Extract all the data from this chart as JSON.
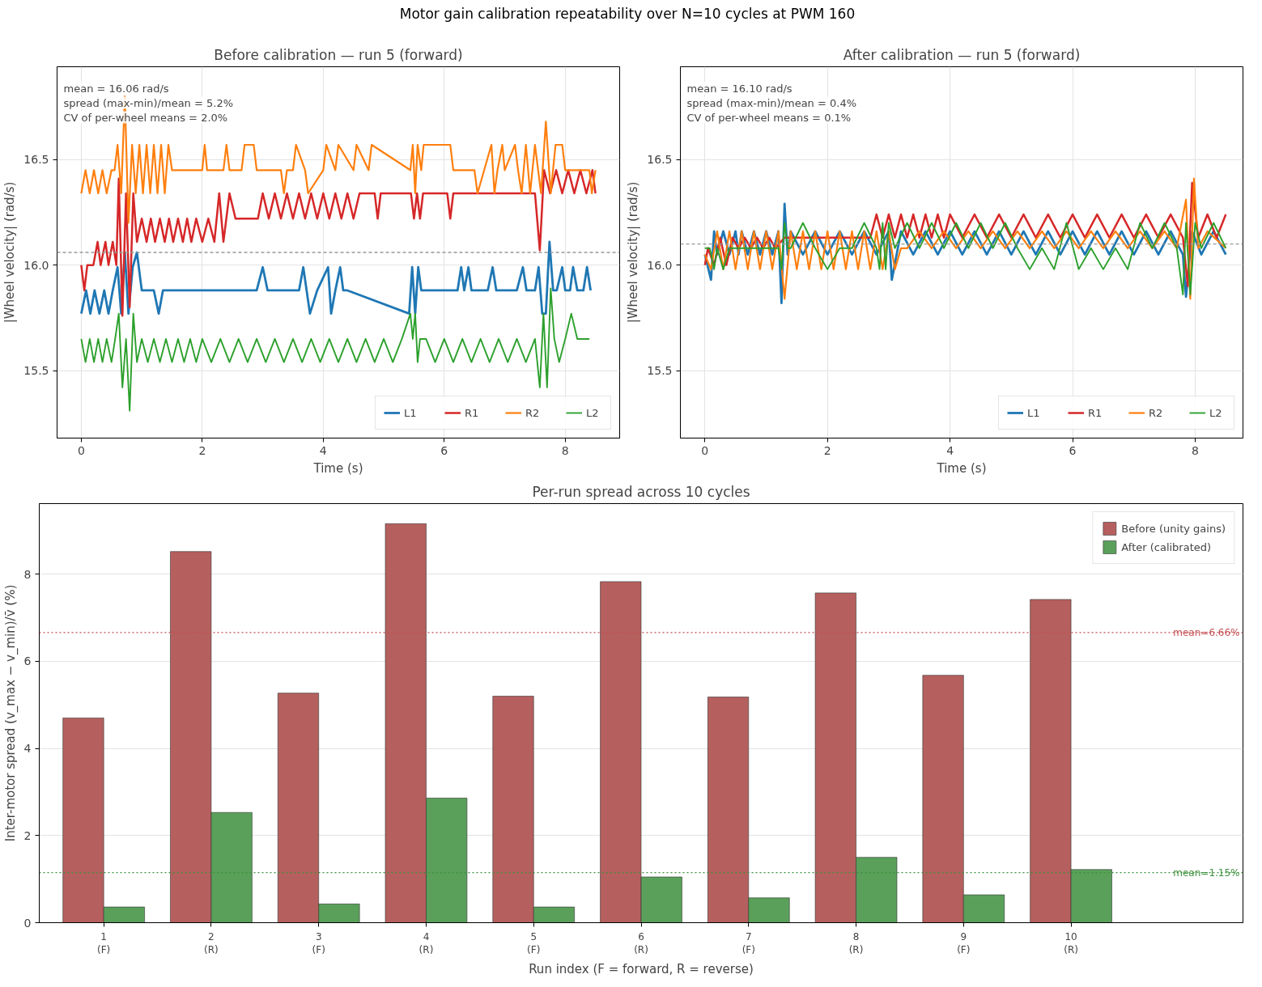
{
  "chart_data": [
    {
      "type": "other",
      "title": "Motor gain calibration repeatability over N=10 cycles at PWM 160"
    },
    {
      "type": "line",
      "title": "Before calibration — run 5 (forward)",
      "xlabel": "Time (s)",
      "ylabel": "|Wheel velocity| (rad/s)",
      "xlim": [
        -0.4,
        8.9
      ],
      "ylim": [
        15.18,
        16.94
      ],
      "xticks": [
        0,
        2,
        4,
        6,
        8
      ],
      "yticks": [
        15.5,
        {
          "value": 16,
          "label": "16.0"
        },
        16.5
      ],
      "grid": true,
      "legend": "bottom right",
      "line_style": "solid",
      "annotations": [
        "mean = 16.06 rad/s",
        "spread (max-min)/mean = 5.2%",
        "CV of per-wheel means = 2.0%"
      ],
      "ref_lines": [
        {
          "axis": "y",
          "value": 16.06,
          "label": null,
          "color": "#999999",
          "line_style": "dashed"
        }
      ],
      "series": [
        {
          "name": "L1",
          "color": "#1f77b4",
          "x": [
            0,
            0.08,
            0.15,
            0.22,
            0.3,
            0.38,
            0.45,
            0.52,
            0.6,
            0.66,
            0.72,
            0.78,
            0.85,
            0.92,
            1.0,
            1.1,
            1.2,
            1.28,
            1.35,
            2.9,
            3.0,
            3.08,
            3.6,
            3.67,
            3.78,
            3.9,
            4.08,
            4.13,
            4.2,
            4.28,
            4.33,
            4.4,
            5.42,
            5.47,
            5.52,
            5.57,
            5.62,
            6.22,
            6.28,
            6.33,
            6.4,
            6.45,
            6.72,
            6.8,
            6.86,
            7.2,
            7.3,
            7.36,
            7.5,
            7.56,
            7.62,
            7.68,
            7.74,
            7.8,
            7.86,
            7.95,
            8.0,
            8.08,
            8.13,
            8.2,
            8.3,
            8.36,
            8.42
          ],
          "values": [
            15.77,
            15.88,
            15.77,
            15.88,
            15.77,
            15.88,
            15.77,
            15.88,
            15.99,
            15.77,
            16.06,
            15.77,
            15.99,
            16.06,
            15.88,
            15.88,
            15.88,
            15.77,
            15.88,
            15.88,
            15.99,
            15.88,
            15.88,
            15.99,
            15.77,
            15.88,
            15.99,
            15.77,
            15.88,
            15.99,
            15.88,
            15.88,
            15.77,
            15.99,
            15.77,
            15.99,
            15.88,
            15.88,
            15.99,
            15.88,
            15.99,
            15.88,
            15.88,
            15.99,
            15.88,
            15.88,
            15.99,
            15.88,
            15.88,
            15.99,
            15.77,
            15.77,
            16.11,
            15.88,
            15.88,
            15.99,
            15.88,
            15.88,
            15.99,
            15.88,
            15.88,
            15.99,
            15.88
          ]
        },
        {
          "name": "R1",
          "color": "#d62728",
          "x": [
            0,
            0.05,
            0.1,
            0.2,
            0.27,
            0.32,
            0.4,
            0.45,
            0.52,
            0.58,
            0.62,
            0.68,
            0.74,
            0.8,
            0.86,
            0.92,
            1.0,
            1.08,
            1.15,
            1.22,
            1.3,
            1.38,
            1.45,
            1.52,
            1.6,
            1.68,
            1.75,
            1.82,
            1.9,
            2.0,
            2.1,
            2.2,
            2.28,
            2.35,
            2.45,
            2.55,
            2.92,
            3.0,
            3.1,
            3.2,
            3.3,
            3.4,
            3.5,
            3.6,
            3.7,
            3.8,
            3.9,
            4.0,
            4.1,
            4.2,
            4.3,
            4.4,
            4.5,
            4.6,
            4.85,
            4.9,
            4.95,
            5.45,
            5.5,
            5.55,
            5.6,
            5.65,
            6.05,
            6.1,
            6.15,
            7.2,
            7.5,
            7.58,
            7.65,
            7.75,
            7.85,
            7.95,
            8.05,
            8.15,
            8.25,
            8.35,
            8.45,
            8.5
          ],
          "values": [
            16.0,
            15.88,
            16.0,
            16.0,
            16.11,
            16.0,
            16.11,
            16.0,
            16.11,
            16.0,
            16.41,
            15.76,
            16.34,
            15.8,
            16.34,
            16.11,
            16.22,
            16.11,
            16.22,
            16.11,
            16.22,
            16.11,
            16.22,
            16.11,
            16.22,
            16.11,
            16.22,
            16.11,
            16.22,
            16.11,
            16.22,
            16.11,
            16.34,
            16.11,
            16.34,
            16.22,
            16.22,
            16.34,
            16.22,
            16.34,
            16.22,
            16.34,
            16.22,
            16.34,
            16.22,
            16.34,
            16.22,
            16.34,
            16.22,
            16.34,
            16.22,
            16.34,
            16.22,
            16.34,
            16.34,
            16.22,
            16.34,
            16.34,
            16.22,
            16.34,
            16.22,
            16.34,
            16.34,
            16.22,
            16.34,
            16.34,
            16.34,
            16.07,
            16.45,
            16.34,
            16.45,
            16.34,
            16.45,
            16.34,
            16.45,
            16.34,
            16.45,
            16.34
          ]
        },
        {
          "name": "R2",
          "color": "#ff7f0e",
          "x": [
            0,
            0.07,
            0.14,
            0.21,
            0.28,
            0.35,
            0.42,
            0.5,
            0.55,
            0.6,
            0.66,
            0.72,
            0.78,
            0.84,
            0.9,
            0.96,
            1.02,
            1.08,
            1.14,
            1.2,
            1.26,
            1.32,
            1.38,
            1.44,
            1.5,
            2.0,
            2.04,
            2.08,
            2.35,
            2.4,
            2.45,
            2.65,
            2.7,
            2.85,
            2.9,
            3.3,
            3.35,
            3.4,
            3.5,
            3.55,
            3.7,
            3.75,
            4.0,
            4.05,
            4.2,
            4.25,
            4.5,
            4.55,
            4.75,
            4.8,
            5.44,
            5.48,
            5.52,
            5.56,
            5.62,
            5.66,
            6.1,
            6.15,
            6.5,
            6.55,
            6.78,
            6.83,
            6.88,
            6.96,
            7.0,
            7.17,
            7.22,
            7.28,
            7.35,
            7.42,
            7.5,
            7.6,
            7.68,
            7.76,
            7.84,
            7.95,
            8.0,
            8.4,
            8.44,
            8.5
          ],
          "values": [
            16.34,
            16.45,
            16.34,
            16.45,
            16.34,
            16.45,
            16.34,
            16.45,
            16.45,
            16.57,
            16.34,
            16.8,
            16.2,
            16.57,
            16.34,
            16.57,
            16.34,
            16.57,
            16.34,
            16.57,
            16.34,
            16.57,
            16.34,
            16.57,
            16.45,
            16.45,
            16.57,
            16.45,
            16.45,
            16.57,
            16.45,
            16.45,
            16.57,
            16.57,
            16.45,
            16.45,
            16.34,
            16.45,
            16.45,
            16.57,
            16.45,
            16.34,
            16.45,
            16.57,
            16.45,
            16.57,
            16.45,
            16.57,
            16.45,
            16.57,
            16.45,
            16.57,
            16.34,
            16.57,
            16.45,
            16.57,
            16.57,
            16.45,
            16.45,
            16.34,
            16.57,
            16.34,
            16.45,
            16.57,
            16.45,
            16.57,
            16.45,
            16.34,
            16.57,
            16.34,
            16.57,
            16.34,
            16.68,
            16.34,
            16.57,
            16.57,
            16.45,
            16.45,
            16.34,
            16.45
          ]
        },
        {
          "name": "L2",
          "color": "#2ca02c",
          "x": [
            0,
            0.07,
            0.14,
            0.21,
            0.28,
            0.35,
            0.42,
            0.5,
            0.56,
            0.62,
            0.68,
            0.74,
            0.8,
            0.86,
            0.92,
            1.0,
            1.1,
            1.2,
            1.3,
            1.4,
            1.5,
            1.6,
            1.7,
            1.8,
            1.9,
            2.0,
            2.15,
            2.3,
            2.45,
            2.6,
            2.75,
            2.9,
            3.05,
            3.2,
            3.35,
            3.5,
            3.65,
            3.8,
            3.95,
            4.1,
            4.25,
            4.4,
            4.55,
            4.7,
            4.85,
            5.0,
            5.15,
            5.3,
            5.44,
            5.48,
            5.52,
            5.56,
            5.6,
            5.7,
            5.85,
            6.0,
            6.15,
            6.3,
            6.45,
            6.6,
            6.75,
            6.9,
            7.05,
            7.2,
            7.35,
            7.5,
            7.58,
            7.64,
            7.7,
            7.76,
            7.82,
            7.9,
            8.0,
            8.1,
            8.2,
            8.4
          ],
          "values": [
            15.65,
            15.54,
            15.65,
            15.54,
            15.65,
            15.54,
            15.65,
            15.54,
            15.65,
            15.77,
            15.42,
            15.65,
            15.31,
            15.77,
            15.54,
            15.65,
            15.54,
            15.65,
            15.54,
            15.65,
            15.54,
            15.65,
            15.54,
            15.65,
            15.54,
            15.65,
            15.54,
            15.65,
            15.54,
            15.65,
            15.54,
            15.65,
            15.54,
            15.65,
            15.54,
            15.65,
            15.54,
            15.65,
            15.54,
            15.65,
            15.54,
            15.65,
            15.54,
            15.65,
            15.54,
            15.65,
            15.54,
            15.65,
            15.77,
            15.65,
            15.77,
            15.54,
            15.65,
            15.65,
            15.54,
            15.65,
            15.54,
            15.65,
            15.54,
            15.65,
            15.54,
            15.65,
            15.54,
            15.65,
            15.54,
            15.65,
            15.42,
            15.77,
            15.42,
            15.89,
            15.65,
            15.54,
            15.65,
            15.77,
            15.65,
            15.65
          ]
        }
      ]
    },
    {
      "type": "line",
      "title": "After calibration — run 5 (forward)",
      "xlabel": "Time (s)",
      "ylabel": "|Wheel velocity| (rad/s)",
      "xlim": [
        -0.4,
        8.78
      ],
      "ylim": [
        15.18,
        16.94
      ],
      "xticks": [
        0,
        2,
        4,
        6,
        8
      ],
      "yticks": [
        15.5,
        {
          "value": 16,
          "label": "16.0"
        },
        16.5
      ],
      "grid": true,
      "legend": "bottom right",
      "line_style": "solid",
      "annotations": [
        "mean = 16.10 rad/s",
        "spread (max-min)/mean = 0.4%",
        "CV of per-wheel means = 0.1%"
      ],
      "ref_lines": [
        {
          "axis": "y",
          "value": 16.1,
          "label": null,
          "color": "#999999",
          "line_style": "dashed"
        }
      ],
      "series": [
        {
          "name": "L1",
          "color": "#1f77b4",
          "x": [
            0,
            0.1,
            0.15,
            0.2,
            0.3,
            0.4,
            0.5,
            0.55,
            0.6,
            0.7,
            0.8,
            0.9,
            1.0,
            1.1,
            1.2,
            1.25,
            1.3,
            1.35,
            1.4,
            1.6,
            1.8,
            2.0,
            2.2,
            2.4,
            2.6,
            2.8,
            3.0,
            3.05,
            3.2,
            3.4,
            3.6,
            3.8,
            4.0,
            4.2,
            4.4,
            4.6,
            4.8,
            5.0,
            5.2,
            5.4,
            5.6,
            5.8,
            6.0,
            6.2,
            6.4,
            6.6,
            6.8,
            7.0,
            7.2,
            7.4,
            7.6,
            7.8,
            7.85,
            7.95,
            8.1,
            8.3,
            8.5
          ],
          "values": [
            16.05,
            15.93,
            16.16,
            16.05,
            16.16,
            16.05,
            16.16,
            16.05,
            16.16,
            16.05,
            16.16,
            16.05,
            16.16,
            16.05,
            16.16,
            15.82,
            16.29,
            16.05,
            16.16,
            16.05,
            16.16,
            16.05,
            16.16,
            16.05,
            16.16,
            16.05,
            16.16,
            15.93,
            16.16,
            16.05,
            16.16,
            16.05,
            16.16,
            16.05,
            16.16,
            16.05,
            16.16,
            16.05,
            16.16,
            16.05,
            16.16,
            16.05,
            16.16,
            16.05,
            16.16,
            16.05,
            16.16,
            16.05,
            16.16,
            16.05,
            16.16,
            16.05,
            15.85,
            16.16,
            16.05,
            16.16,
            16.05
          ]
        },
        {
          "name": "R1",
          "color": "#d62728",
          "x": [
            0,
            0.05,
            0.15,
            0.25,
            0.35,
            0.45,
            0.55,
            0.65,
            0.75,
            0.85,
            0.95,
            1.05,
            1.15,
            1.3,
            2.7,
            2.8,
            2.9,
            3.0,
            3.1,
            3.2,
            3.3,
            3.4,
            3.5,
            3.6,
            3.7,
            3.8,
            3.9,
            4.0,
            4.2,
            4.4,
            4.6,
            4.8,
            5.0,
            5.2,
            5.4,
            5.6,
            5.8,
            6.0,
            6.2,
            6.4,
            6.6,
            6.8,
            7.0,
            7.2,
            7.4,
            7.6,
            7.8,
            7.88,
            7.95,
            8.05,
            8.2,
            8.35,
            8.5
          ],
          "values": [
            16.0,
            16.08,
            16.0,
            16.13,
            16.0,
            16.13,
            16.08,
            16.13,
            16.08,
            16.13,
            16.08,
            16.13,
            16.08,
            16.13,
            16.13,
            16.24,
            16.13,
            16.24,
            16.13,
            16.24,
            16.13,
            16.24,
            16.13,
            16.24,
            16.13,
            16.24,
            16.13,
            16.24,
            16.13,
            16.24,
            16.13,
            16.24,
            16.13,
            16.24,
            16.13,
            16.24,
            16.13,
            16.24,
            16.13,
            16.24,
            16.13,
            16.24,
            16.13,
            16.24,
            16.13,
            16.24,
            16.13,
            15.9,
            16.39,
            16.13,
            16.24,
            16.13,
            16.24
          ]
        },
        {
          "name": "R2",
          "color": "#ff7f0e",
          "x": [
            0,
            0.1,
            0.2,
            0.3,
            0.4,
            0.5,
            0.6,
            0.7,
            0.8,
            0.9,
            1.0,
            1.1,
            1.2,
            1.3,
            1.4,
            1.5,
            1.6,
            1.7,
            1.8,
            1.9,
            2.0,
            2.1,
            2.2,
            2.3,
            2.4,
            2.5,
            2.6,
            2.7,
            2.8,
            2.9,
            3.0,
            3.1,
            3.2,
            3.3,
            3.5,
            3.7,
            3.9,
            4.1,
            4.3,
            4.5,
            4.7,
            4.9,
            5.1,
            5.3,
            5.5,
            5.7,
            5.9,
            6.1,
            6.3,
            6.5,
            6.7,
            6.9,
            7.1,
            7.3,
            7.5,
            7.7,
            7.85,
            7.92,
            7.98,
            8.05,
            8.2,
            8.5
          ],
          "values": [
            16.05,
            15.98,
            16.16,
            15.98,
            16.16,
            15.98,
            16.16,
            15.98,
            16.16,
            15.98,
            16.16,
            15.98,
            16.16,
            15.84,
            16.16,
            15.98,
            16.16,
            15.98,
            16.16,
            15.98,
            16.16,
            15.98,
            16.16,
            15.98,
            16.16,
            15.98,
            16.16,
            15.98,
            16.16,
            15.98,
            16.16,
            15.98,
            16.08,
            16.08,
            16.16,
            16.08,
            16.16,
            16.08,
            16.16,
            16.08,
            16.16,
            16.08,
            16.16,
            16.08,
            16.16,
            16.08,
            16.16,
            16.08,
            16.16,
            16.08,
            16.16,
            16.08,
            16.16,
            16.08,
            16.16,
            16.08,
            16.31,
            15.84,
            16.41,
            16.08,
            16.16,
            16.08
          ]
        },
        {
          "name": "L2",
          "color": "#2ca02c",
          "x": [
            0,
            0.08,
            0.15,
            0.2,
            0.3,
            0.4,
            0.5,
            0.6,
            0.7,
            0.8,
            0.9,
            1.0,
            1.1,
            1.2,
            1.25,
            1.3,
            1.35,
            1.4,
            1.6,
            1.8,
            2.0,
            2.2,
            2.4,
            2.6,
            2.8,
            2.85,
            2.9,
            2.95,
            3.0,
            3.1,
            3.3,
            3.5,
            3.7,
            3.9,
            4.1,
            4.3,
            4.5,
            4.7,
            4.9,
            5.1,
            5.3,
            5.5,
            5.7,
            5.9,
            6.1,
            6.3,
            6.5,
            6.7,
            6.9,
            7.1,
            7.3,
            7.5,
            7.7,
            7.8,
            7.85,
            7.92,
            8.0,
            8.1,
            8.3,
            8.5
          ],
          "values": [
            16.08,
            16.08,
            15.98,
            16.08,
            15.98,
            16.08,
            16.08,
            16.08,
            16.08,
            16.08,
            16.08,
            16.08,
            16.08,
            16.08,
            15.98,
            16.2,
            16.08,
            16.08,
            16.2,
            16.08,
            15.98,
            16.08,
            16.08,
            16.2,
            16.08,
            15.98,
            16.2,
            15.98,
            16.2,
            16.08,
            16.2,
            16.08,
            16.2,
            16.08,
            16.2,
            16.08,
            16.2,
            16.08,
            16.2,
            16.08,
            15.98,
            16.08,
            15.98,
            16.2,
            15.98,
            16.08,
            15.98,
            16.08,
            15.98,
            16.2,
            16.08,
            16.2,
            16.08,
            15.86,
            16.2,
            15.86,
            16.2,
            16.08,
            16.2,
            16.08
          ]
        }
      ]
    },
    {
      "type": "bar",
      "title": "Per-run spread across 10 cycles",
      "xlabel": "Run index (F = forward, R = reverse)",
      "ylabel": "Inter-motor spread (v_max − v_min)/v̄ (%)",
      "ylim": [
        0,
        9.62
      ],
      "yticks": [
        0,
        2,
        4,
        6,
        8
      ],
      "grid": "y",
      "legend": "top right",
      "categories": [
        "1\n(F)",
        "2\n(R)",
        "3\n(F)",
        "4\n(R)",
        "5\n(F)",
        "6\n(R)",
        "7\n(F)",
        "8\n(R)",
        "9\n(F)",
        "10\n(R)"
      ],
      "ref_lines": [
        {
          "axis": "y",
          "value": 6.66,
          "label": "mean=6.66%",
          "color": "#c44e52",
          "line_style": "dotted"
        },
        {
          "axis": "y",
          "value": 1.15,
          "label": "mean=1.15%",
          "color": "#3d8f3d",
          "line_style": "dotted"
        }
      ],
      "series": [
        {
          "name": "Before (unity gains)",
          "color": "#b5605e",
          "values": [
            4.7,
            8.52,
            5.27,
            9.16,
            5.2,
            7.83,
            5.18,
            7.57,
            5.68,
            7.42
          ]
        },
        {
          "name": "After (calibrated)",
          "color": "#5aa05a",
          "values": [
            0.36,
            2.53,
            0.43,
            2.86,
            0.36,
            1.05,
            0.57,
            1.5,
            0.64,
            1.22
          ]
        }
      ]
    }
  ]
}
